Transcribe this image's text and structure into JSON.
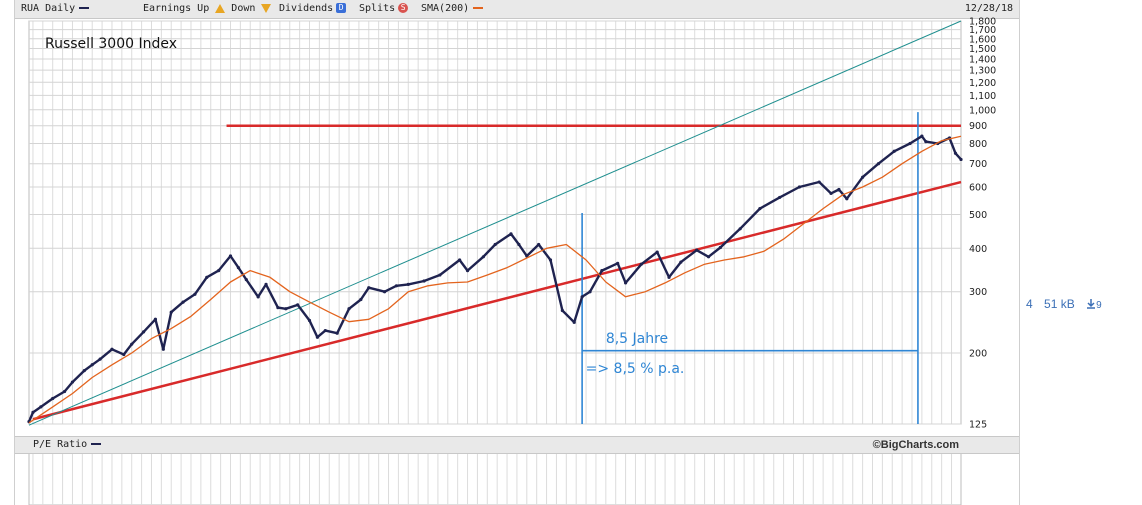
{
  "legend": {
    "symbol": "RUA Daily",
    "earnings_up": "Earnings Up",
    "down": "Down",
    "dividends": "Dividends",
    "splits": "Splits",
    "sma": "SMA(200)",
    "date": "12/28/18",
    "dividends_glyph": "D",
    "splits_glyph": "S",
    "colors": {
      "price": "#1f2350",
      "sma": "#e3641e",
      "earnings": "#e8a623",
      "dividends": "#3a6fd8",
      "splits": "#d9534f"
    }
  },
  "pe_ratio": {
    "label": "P/E Ratio",
    "credit": "©BigCharts.com"
  },
  "side_meta": {
    "count": "4",
    "size": "51 kB",
    "downloads": "9",
    "download_icon": "download-icon"
  },
  "annotations": {
    "period": "8,5 Jahre",
    "rate": "=> 8,5 % p.a."
  },
  "chart_data": {
    "type": "line",
    "title": "Russell 3000 Index",
    "yscale": "log",
    "ylim": [
      125,
      1800
    ],
    "xlim": [
      1995.4,
      2018.99
    ],
    "y_tick_labels": [
      "1,800",
      "1,700",
      "1,600",
      "1,500",
      "1,400",
      "1,300",
      "1,200",
      "1,100",
      "1,000",
      "900",
      "800",
      "700",
      "600",
      "500",
      "400",
      "300",
      "200",
      "125"
    ],
    "y_ticks": [
      1800,
      1700,
      1600,
      1500,
      1400,
      1300,
      1200,
      1100,
      1000,
      900,
      800,
      700,
      600,
      500,
      400,
      300,
      200,
      125
    ],
    "grid": true,
    "series": [
      {
        "name": "RUA Daily",
        "x": [
          1995.4,
          1995.5,
          1995.7,
          1996.0,
          1996.3,
          1996.5,
          1996.8,
          1997.0,
          1997.2,
          1997.5,
          1997.8,
          1998.0,
          1998.3,
          1998.6,
          1998.8,
          1999.0,
          1999.3,
          1999.6,
          1999.9,
          2000.2,
          2000.5,
          2000.7,
          2000.9,
          2001.2,
          2001.4,
          2001.7,
          2001.9,
          2002.2,
          2002.5,
          2002.7,
          2002.9,
          2003.2,
          2003.5,
          2003.8,
          2004.0,
          2004.4,
          2004.7,
          2005.0,
          2005.4,
          2005.8,
          2006.3,
          2006.5,
          2006.9,
          2007.2,
          2007.6,
          2007.8,
          2008.0,
          2008.3,
          2008.6,
          2008.9,
          2009.2,
          2009.4,
          2009.6,
          2009.9,
          2010.3,
          2010.5,
          2010.9,
          2011.3,
          2011.6,
          2011.9,
          2012.3,
          2012.6,
          2012.9,
          2013.4,
          2013.9,
          2014.4,
          2014.9,
          2015.4,
          2015.7,
          2015.9,
          2016.1,
          2016.5,
          2016.9,
          2017.3,
          2017.7,
          2018.0,
          2018.1,
          2018.4,
          2018.7,
          2018.85,
          2018.99
        ],
        "values": [
          127,
          135,
          140,
          148,
          155,
          165,
          178,
          185,
          192,
          205,
          198,
          212,
          230,
          250,
          205,
          262,
          280,
          295,
          330,
          345,
          380,
          352,
          325,
          290,
          315,
          270,
          268,
          275,
          248,
          222,
          232,
          228,
          268,
          285,
          308,
          300,
          312,
          315,
          322,
          335,
          370,
          345,
          378,
          410,
          440,
          410,
          380,
          410,
          370,
          265,
          245,
          290,
          300,
          345,
          362,
          318,
          360,
          390,
          330,
          365,
          395,
          378,
          402,
          455,
          520,
          560,
          600,
          620,
          575,
          590,
          555,
          640,
          700,
          760,
          800,
          840,
          810,
          800,
          830,
          750,
          720
        ]
      },
      {
        "name": "SMA(200)",
        "x": [
          1995.4,
          1996.0,
          1996.5,
          1997.0,
          1997.5,
          1998.0,
          1998.5,
          1999.0,
          1999.5,
          2000.0,
          2000.5,
          2001.0,
          2001.5,
          2002.0,
          2002.5,
          2003.0,
          2003.5,
          2004.0,
          2004.5,
          2005.0,
          2005.5,
          2006.0,
          2006.5,
          2007.0,
          2007.5,
          2008.0,
          2008.5,
          2009.0,
          2009.5,
          2010.0,
          2010.5,
          2011.0,
          2011.5,
          2012.0,
          2012.5,
          2013.0,
          2013.5,
          2014.0,
          2014.5,
          2015.0,
          2015.5,
          2016.0,
          2016.5,
          2017.0,
          2017.5,
          2018.0,
          2018.5,
          2018.99
        ],
        "values": [
          126,
          140,
          153,
          170,
          185,
          200,
          220,
          235,
          255,
          285,
          320,
          345,
          330,
          300,
          280,
          262,
          246,
          250,
          268,
          300,
          312,
          318,
          320,
          335,
          352,
          375,
          400,
          410,
          370,
          320,
          290,
          300,
          318,
          340,
          360,
          370,
          378,
          392,
          425,
          470,
          520,
          570,
          600,
          640,
          700,
          760,
          815,
          840
        ]
      }
    ],
    "trendlines": [
      {
        "name": "resistance",
        "from": [
          2000.4,
          900
        ],
        "to": [
          2018.99,
          900
        ],
        "color": "#d82a2a"
      },
      {
        "name": "lower-support",
        "from": [
          1995.5,
          129
        ],
        "to": [
          2018.99,
          620
        ],
        "color": "#d82a2a"
      },
      {
        "name": "long-channel",
        "from": [
          1995.4,
          124
        ],
        "to": [
          2018.99,
          1800
        ],
        "color": "#1f8f8f"
      },
      {
        "name": "marker-start",
        "from": [
          2009.4,
          505
        ],
        "to": [
          2009.4,
          125
        ],
        "color": "#2f86d4"
      },
      {
        "name": "marker-end",
        "from": [
          2017.9,
          985
        ],
        "to": [
          2017.9,
          125
        ],
        "color": "#2f86d4"
      },
      {
        "name": "span",
        "from": [
          2009.4,
          203
        ],
        "to": [
          2017.9,
          203
        ],
        "color": "#2f86d4"
      }
    ]
  }
}
